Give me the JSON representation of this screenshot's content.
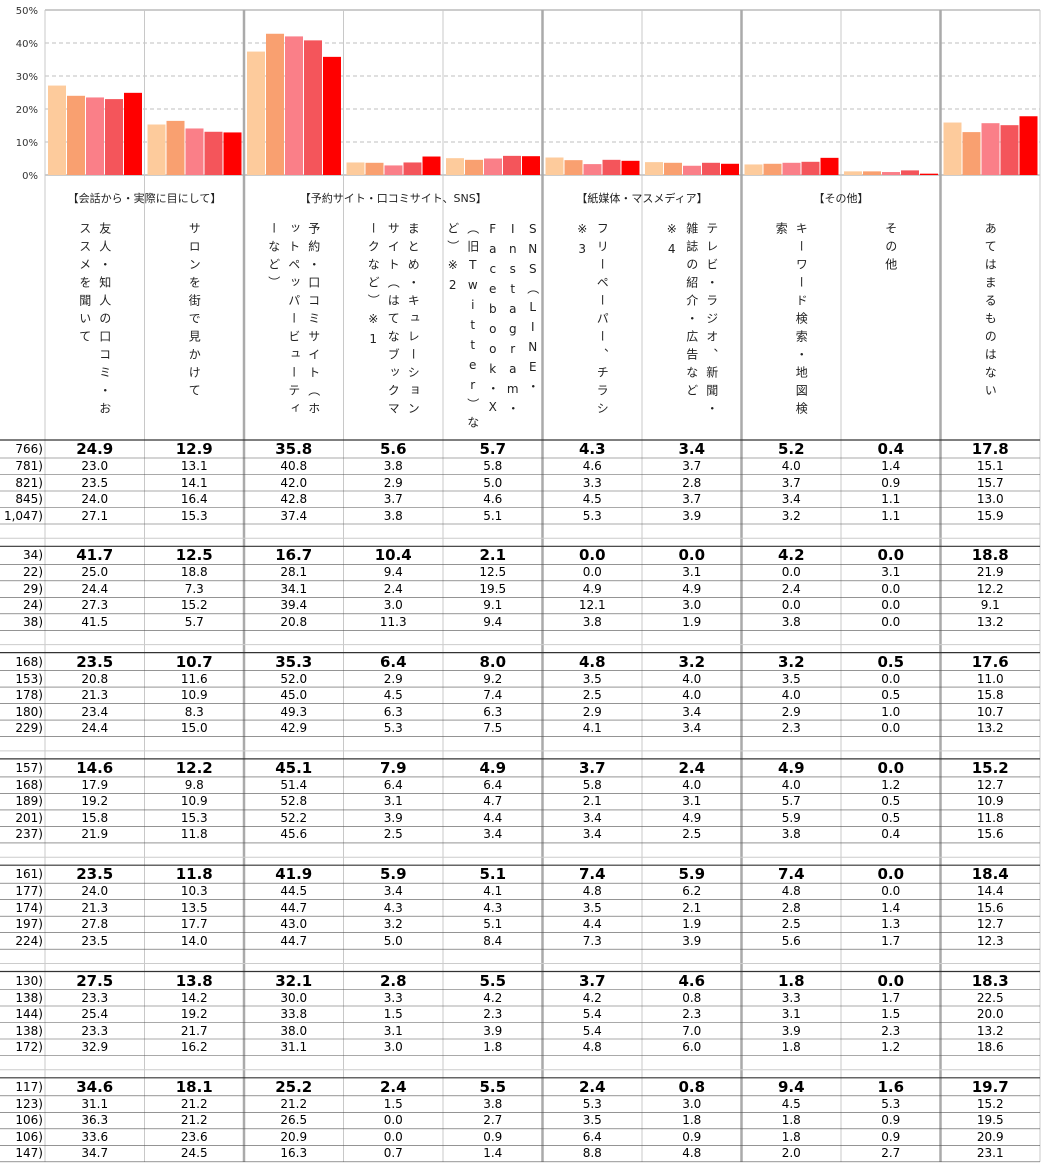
{
  "chart": {
    "ylim": [
      0,
      50
    ],
    "yticks": [
      {
        "value": 0,
        "label": "0%"
      },
      {
        "value": 10,
        "label": "10%"
      },
      {
        "value": 20,
        "label": "20%"
      },
      {
        "value": 30,
        "label": "30%"
      },
      {
        "value": 40,
        "label": "40%"
      },
      {
        "value": 50,
        "label": "50%"
      }
    ],
    "colors": [
      "#ff0000",
      "#f4555b",
      "#fa7f88",
      "#f9a070",
      "#fdcb9c"
    ]
  },
  "groups": [
    {
      "label": "【会話から・実際に目にして】",
      "columns": [
        "友人・知人の口コミ・おススメを聞いて",
        "サロンを街で見かけて"
      ]
    },
    {
      "label": "【予約サイト・口コミサイト、SNS】",
      "columns": [
        "予約・口コミサイト（ホットペッパービューティーなど）",
        "まとめ・キュレーションサイト（はてなブックマークなど）※1",
        "SNS（LINE・Instagram・Facebook・X（旧Twitter）など）※2"
      ]
    },
    {
      "label": "【紙媒体・マスメディア】",
      "columns": [
        "フリーペーパー、チラシ※3",
        "テレビ・ラジオ、新聞・雑誌の紹介・広告など※4"
      ]
    },
    {
      "label": "【その他】",
      "columns": [
        "キーワード検索・地図検索",
        "その他"
      ]
    },
    {
      "columns": [
        "あてはまるものはない"
      ]
    }
  ],
  "blocks": [
    {
      "rows": [
        {
          "label": "766)",
          "values": [
            "24.9",
            "12.9",
            "35.8",
            "5.6",
            "5.7",
            "4.3",
            "3.4",
            "5.2",
            "0.4",
            "17.8"
          ]
        },
        {
          "label": "781)",
          "values": [
            "23.0",
            "13.1",
            "40.8",
            "3.8",
            "5.8",
            "4.6",
            "3.7",
            "4.0",
            "1.4",
            "15.1"
          ]
        },
        {
          "label": "821)",
          "values": [
            "23.5",
            "14.1",
            "42.0",
            "2.9",
            "5.0",
            "3.3",
            "2.8",
            "3.7",
            "0.9",
            "15.7"
          ]
        },
        {
          "label": "845)",
          "values": [
            "24.0",
            "16.4",
            "42.8",
            "3.7",
            "4.6",
            "4.5",
            "3.7",
            "3.4",
            "1.1",
            "13.0"
          ]
        },
        {
          "label": "1,047)",
          "values": [
            "27.1",
            "15.3",
            "37.4",
            "3.8",
            "5.1",
            "5.3",
            "3.9",
            "3.2",
            "1.1",
            "15.9"
          ]
        }
      ]
    },
    {
      "rows": [
        {
          "label": "34)",
          "values": [
            "41.7",
            "12.5",
            "16.7",
            "10.4",
            "2.1",
            "0.0",
            "0.0",
            "4.2",
            "0.0",
            "18.8"
          ]
        },
        {
          "label": "22)",
          "values": [
            "25.0",
            "18.8",
            "28.1",
            "9.4",
            "12.5",
            "0.0",
            "3.1",
            "0.0",
            "3.1",
            "21.9"
          ]
        },
        {
          "label": "29)",
          "values": [
            "24.4",
            "7.3",
            "34.1",
            "2.4",
            "19.5",
            "4.9",
            "4.9",
            "2.4",
            "0.0",
            "12.2"
          ]
        },
        {
          "label": "24)",
          "values": [
            "27.3",
            "15.2",
            "39.4",
            "3.0",
            "9.1",
            "12.1",
            "3.0",
            "0.0",
            "0.0",
            "9.1"
          ]
        },
        {
          "label": "38)",
          "values": [
            "41.5",
            "5.7",
            "20.8",
            "11.3",
            "9.4",
            "3.8",
            "1.9",
            "3.8",
            "0.0",
            "13.2"
          ]
        }
      ]
    },
    {
      "rows": [
        {
          "label": "168)",
          "values": [
            "23.5",
            "10.7",
            "35.3",
            "6.4",
            "8.0",
            "4.8",
            "3.2",
            "3.2",
            "0.5",
            "17.6"
          ]
        },
        {
          "label": "153)",
          "values": [
            "20.8",
            "11.6",
            "52.0",
            "2.9",
            "9.2",
            "3.5",
            "4.0",
            "3.5",
            "0.0",
            "11.0"
          ]
        },
        {
          "label": "178)",
          "values": [
            "21.3",
            "10.9",
            "45.0",
            "4.5",
            "7.4",
            "2.5",
            "4.0",
            "4.0",
            "0.5",
            "15.8"
          ]
        },
        {
          "label": "180)",
          "values": [
            "23.4",
            "8.3",
            "49.3",
            "6.3",
            "6.3",
            "2.9",
            "3.4",
            "2.9",
            "1.0",
            "10.7"
          ]
        },
        {
          "label": "229)",
          "values": [
            "24.4",
            "15.0",
            "42.9",
            "5.3",
            "7.5",
            "4.1",
            "3.4",
            "2.3",
            "0.0",
            "13.2"
          ]
        }
      ]
    },
    {
      "rows": [
        {
          "label": "157)",
          "values": [
            "14.6",
            "12.2",
            "45.1",
            "7.9",
            "4.9",
            "3.7",
            "2.4",
            "4.9",
            "0.0",
            "15.2"
          ]
        },
        {
          "label": "168)",
          "values": [
            "17.9",
            "9.8",
            "51.4",
            "6.4",
            "6.4",
            "5.8",
            "4.0",
            "4.0",
            "1.2",
            "12.7"
          ]
        },
        {
          "label": "189)",
          "values": [
            "19.2",
            "10.9",
            "52.8",
            "3.1",
            "4.7",
            "2.1",
            "3.1",
            "5.7",
            "0.5",
            "10.9"
          ]
        },
        {
          "label": "201)",
          "values": [
            "15.8",
            "15.3",
            "52.2",
            "3.9",
            "4.4",
            "3.4",
            "4.9",
            "5.9",
            "0.5",
            "11.8"
          ]
        },
        {
          "label": "237)",
          "values": [
            "21.9",
            "11.8",
            "45.6",
            "2.5",
            "3.4",
            "3.4",
            "2.5",
            "3.8",
            "0.4",
            "15.6"
          ]
        }
      ]
    },
    {
      "rows": [
        {
          "label": "161)",
          "values": [
            "23.5",
            "11.8",
            "41.9",
            "5.9",
            "5.1",
            "7.4",
            "5.9",
            "7.4",
            "0.0",
            "18.4"
          ]
        },
        {
          "label": "177)",
          "values": [
            "24.0",
            "10.3",
            "44.5",
            "3.4",
            "4.1",
            "4.8",
            "6.2",
            "4.8",
            "0.0",
            "14.4"
          ]
        },
        {
          "label": "174)",
          "values": [
            "21.3",
            "13.5",
            "44.7",
            "4.3",
            "4.3",
            "3.5",
            "2.1",
            "2.8",
            "1.4",
            "15.6"
          ]
        },
        {
          "label": "197)",
          "values": [
            "27.8",
            "17.7",
            "43.0",
            "3.2",
            "5.1",
            "4.4",
            "1.9",
            "2.5",
            "1.3",
            "12.7"
          ]
        },
        {
          "label": "224)",
          "values": [
            "23.5",
            "14.0",
            "44.7",
            "5.0",
            "8.4",
            "7.3",
            "3.9",
            "5.6",
            "1.7",
            "12.3"
          ]
        }
      ]
    },
    {
      "rows": [
        {
          "label": "130)",
          "values": [
            "27.5",
            "13.8",
            "32.1",
            "2.8",
            "5.5",
            "3.7",
            "4.6",
            "1.8",
            "0.0",
            "18.3"
          ]
        },
        {
          "label": "138)",
          "values": [
            "23.3",
            "14.2",
            "30.0",
            "3.3",
            "4.2",
            "4.2",
            "0.8",
            "3.3",
            "1.7",
            "22.5"
          ]
        },
        {
          "label": "144)",
          "values": [
            "25.4",
            "19.2",
            "33.8",
            "1.5",
            "2.3",
            "5.4",
            "2.3",
            "3.1",
            "1.5",
            "20.0"
          ]
        },
        {
          "label": "138)",
          "values": [
            "23.3",
            "21.7",
            "38.0",
            "3.1",
            "3.9",
            "5.4",
            "7.0",
            "3.9",
            "2.3",
            "13.2"
          ]
        },
        {
          "label": "172)",
          "values": [
            "32.9",
            "16.2",
            "31.1",
            "3.0",
            "1.8",
            "4.8",
            "6.0",
            "1.8",
            "1.2",
            "18.6"
          ]
        }
      ]
    },
    {
      "rows": [
        {
          "label": "117)",
          "values": [
            "34.6",
            "18.1",
            "25.2",
            "2.4",
            "5.5",
            "2.4",
            "0.8",
            "9.4",
            "1.6",
            "19.7"
          ]
        },
        {
          "label": "123)",
          "values": [
            "31.1",
            "21.2",
            "21.2",
            "1.5",
            "3.8",
            "5.3",
            "3.0",
            "4.5",
            "5.3",
            "15.2"
          ]
        },
        {
          "label": "106)",
          "values": [
            "36.3",
            "21.2",
            "26.5",
            "0.0",
            "2.7",
            "3.5",
            "1.8",
            "1.8",
            "0.9",
            "19.5"
          ]
        },
        {
          "label": "106)",
          "values": [
            "33.6",
            "23.6",
            "20.9",
            "0.0",
            "0.9",
            "6.4",
            "0.9",
            "1.8",
            "0.9",
            "20.9"
          ]
        },
        {
          "label": "147)",
          "values": [
            "34.7",
            "24.5",
            "16.3",
            "0.7",
            "1.4",
            "8.8",
            "4.8",
            "2.0",
            "2.7",
            "23.1"
          ]
        }
      ]
    }
  ]
}
